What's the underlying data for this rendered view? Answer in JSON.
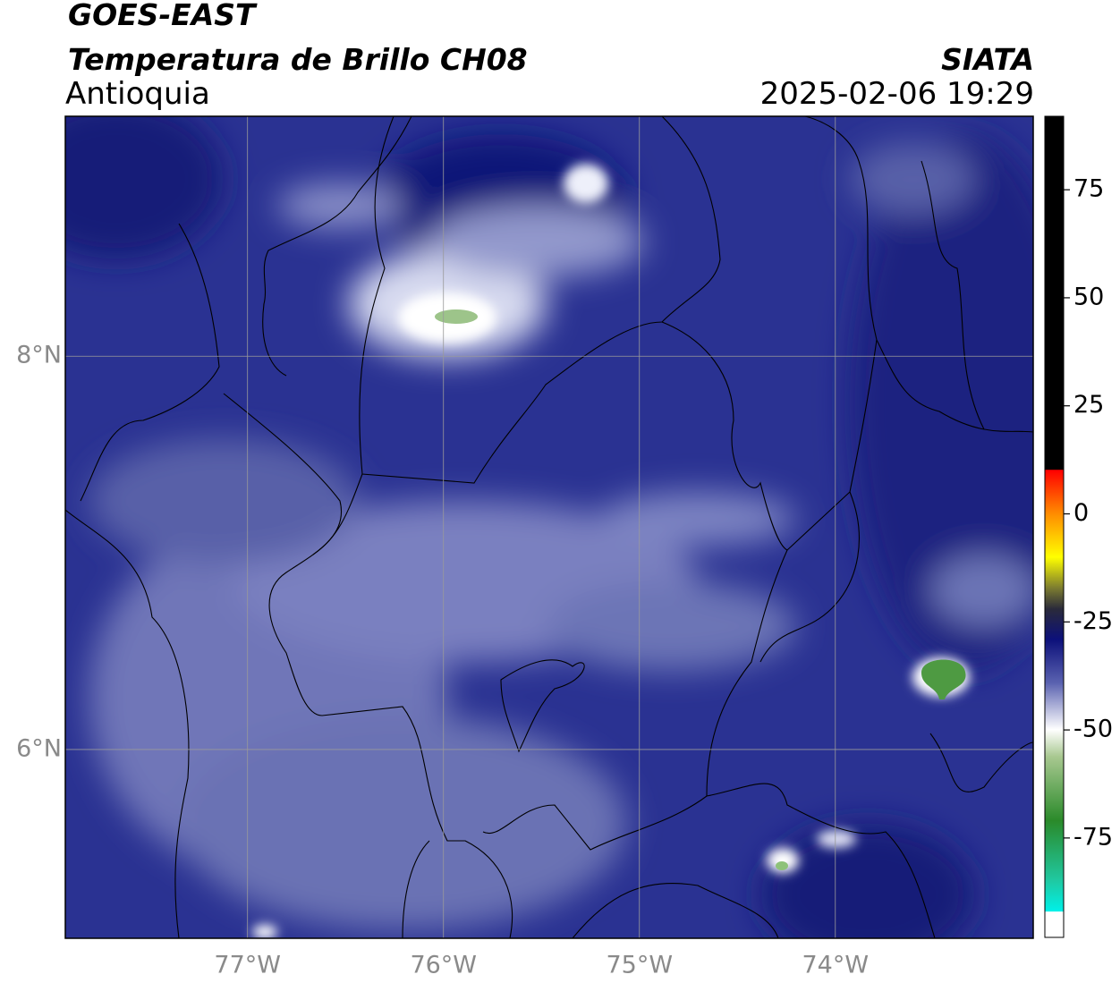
{
  "header": {
    "title": "GOES-EAST",
    "subtitle": "Temperatura de Brillo CH08",
    "region": "Antioquia",
    "source": "SIATA",
    "timestamp": "2025-02-06 19:29"
  },
  "map": {
    "xlim": [
      -77.93,
      -72.99
    ],
    "ylim": [
      5.04,
      9.22
    ],
    "xticks": [
      {
        "value": -77,
        "label": "77°W"
      },
      {
        "value": -76,
        "label": "76°W"
      },
      {
        "value": -75,
        "label": "75°W"
      },
      {
        "value": -74,
        "label": "74°W"
      }
    ],
    "yticks": [
      {
        "value": 6,
        "label": "6°N"
      },
      {
        "value": 8,
        "label": "8°N"
      }
    ],
    "grid": true
  },
  "colorbar": {
    "lim": [
      -98,
      92
    ],
    "ticks": [
      75,
      50,
      25,
      0,
      -25,
      -50,
      -75
    ]
  }
}
